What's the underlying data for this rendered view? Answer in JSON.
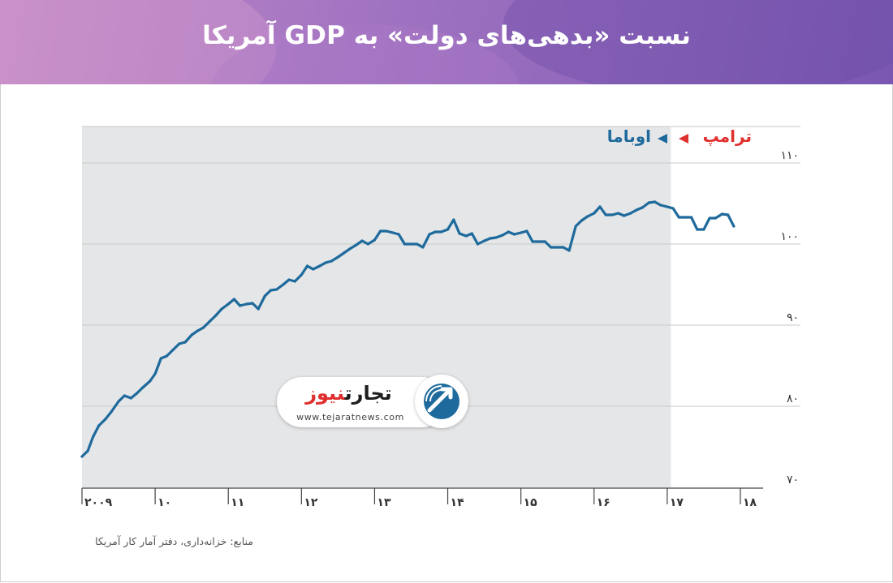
{
  "title": "نسبت «بدهی‌های دولت» به GDP آمریکا",
  "source": "منابع: خزانه‌داری، دفتر آمار کار آمریکا",
  "logo": {
    "name_part1": "تجارت",
    "name_part2": "نیوز",
    "url": "www.tejaratnews.com"
  },
  "colors": {
    "header_start": "#c289c6",
    "header_end": "#7a58b2",
    "line": "#1e6a9c",
    "shaded": "#e5e6e8",
    "trump": "#e0302e",
    "obama": "#1e6a9c",
    "logo_accent": "#1e6a9c"
  },
  "chart_data": {
    "type": "line",
    "x_ticks": [
      "۲۰۰۹",
      "۱۰",
      "۱۱",
      "۱۲",
      "۱۳",
      "۱۴",
      "۱۵",
      "۱۶",
      "۱۷",
      "۱۸"
    ],
    "x_tick_values": [
      2009,
      2010,
      2011,
      2012,
      2013,
      2014,
      2015,
      2016,
      2017,
      2018
    ],
    "xlim": [
      2009,
      2018.2
    ],
    "y_ticks": [
      "۷۰",
      "۸۰",
      "۹۰",
      "۱۰۰",
      "۱۱۰"
    ],
    "y_tick_values": [
      70,
      80,
      90,
      100,
      110
    ],
    "ylim": [
      70,
      114.5
    ],
    "grid": true,
    "shaded_region": [
      2009,
      2017.05
    ],
    "annotations": [
      {
        "label": "اوباما",
        "color": "#1e6a9c",
        "arrow": "left"
      },
      {
        "label": "ترامپ",
        "color": "#e0302e",
        "arrow": "right"
      }
    ],
    "series": [
      {
        "values": [
          [
            2009.0,
            73.8
          ],
          [
            2009.08,
            74.5
          ],
          [
            2009.15,
            76.2
          ],
          [
            2009.23,
            77.6
          ],
          [
            2009.32,
            78.4
          ],
          [
            2009.4,
            79.3
          ],
          [
            2009.5,
            80.6
          ],
          [
            2009.58,
            81.3
          ],
          [
            2009.67,
            81.0
          ],
          [
            2009.75,
            81.6
          ],
          [
            2009.83,
            82.3
          ],
          [
            2009.93,
            83.1
          ],
          [
            2010.0,
            84.0
          ],
          [
            2010.08,
            85.9
          ],
          [
            2010.16,
            86.2
          ],
          [
            2010.25,
            87.0
          ],
          [
            2010.33,
            87.7
          ],
          [
            2010.41,
            87.9
          ],
          [
            2010.5,
            88.8
          ],
          [
            2010.58,
            89.3
          ],
          [
            2010.66,
            89.7
          ],
          [
            2010.75,
            90.5
          ],
          [
            2010.83,
            91.2
          ],
          [
            2010.91,
            92.0
          ],
          [
            2011.0,
            92.6
          ],
          [
            2011.08,
            93.2
          ],
          [
            2011.16,
            92.4
          ],
          [
            2011.25,
            92.6
          ],
          [
            2011.33,
            92.7
          ],
          [
            2011.41,
            92.0
          ],
          [
            2011.5,
            93.6
          ],
          [
            2011.58,
            94.3
          ],
          [
            2011.66,
            94.4
          ],
          [
            2011.75,
            95.0
          ],
          [
            2011.83,
            95.6
          ],
          [
            2011.91,
            95.4
          ],
          [
            2012.0,
            96.2
          ],
          [
            2012.08,
            97.3
          ],
          [
            2012.16,
            96.9
          ],
          [
            2012.25,
            97.3
          ],
          [
            2012.33,
            97.7
          ],
          [
            2012.41,
            97.9
          ],
          [
            2012.5,
            98.4
          ],
          [
            2012.58,
            98.9
          ],
          [
            2012.66,
            99.4
          ],
          [
            2012.75,
            99.9
          ],
          [
            2012.83,
            100.4
          ],
          [
            2012.91,
            100.0
          ],
          [
            2013.0,
            100.5
          ],
          [
            2013.08,
            101.6
          ],
          [
            2013.16,
            101.6
          ],
          [
            2013.25,
            101.4
          ],
          [
            2013.33,
            101.2
          ],
          [
            2013.41,
            100.0
          ],
          [
            2013.5,
            100.0
          ],
          [
            2013.58,
            100.0
          ],
          [
            2013.66,
            99.6
          ],
          [
            2013.75,
            101.2
          ],
          [
            2013.83,
            101.5
          ],
          [
            2013.91,
            101.5
          ],
          [
            2014.0,
            101.8
          ],
          [
            2014.08,
            103.0
          ],
          [
            2014.16,
            101.3
          ],
          [
            2014.25,
            101.0
          ],
          [
            2014.33,
            101.3
          ],
          [
            2014.41,
            100.0
          ],
          [
            2014.5,
            100.4
          ],
          [
            2014.58,
            100.7
          ],
          [
            2014.66,
            100.8
          ],
          [
            2014.75,
            101.1
          ],
          [
            2014.83,
            101.5
          ],
          [
            2014.91,
            101.2
          ],
          [
            2015.0,
            101.4
          ],
          [
            2015.08,
            101.6
          ],
          [
            2015.16,
            100.3
          ],
          [
            2015.25,
            100.3
          ],
          [
            2015.33,
            100.3
          ],
          [
            2015.41,
            99.6
          ],
          [
            2015.5,
            99.6
          ],
          [
            2015.58,
            99.6
          ],
          [
            2015.66,
            99.2
          ],
          [
            2015.75,
            102.2
          ],
          [
            2015.83,
            102.9
          ],
          [
            2015.91,
            103.4
          ],
          [
            2016.0,
            103.8
          ],
          [
            2016.08,
            104.6
          ],
          [
            2016.16,
            103.6
          ],
          [
            2016.25,
            103.6
          ],
          [
            2016.33,
            103.8
          ],
          [
            2016.41,
            103.5
          ],
          [
            2016.5,
            103.8
          ],
          [
            2016.58,
            104.2
          ],
          [
            2016.66,
            104.5
          ],
          [
            2016.75,
            105.1
          ],
          [
            2016.83,
            105.2
          ],
          [
            2016.91,
            104.8
          ],
          [
            2017.0,
            104.6
          ],
          [
            2017.08,
            104.4
          ],
          [
            2017.16,
            103.3
          ],
          [
            2017.25,
            103.3
          ],
          [
            2017.33,
            103.3
          ],
          [
            2017.41,
            101.8
          ],
          [
            2017.5,
            101.8
          ],
          [
            2017.58,
            103.2
          ],
          [
            2017.66,
            103.2
          ],
          [
            2017.75,
            103.7
          ],
          [
            2017.83,
            103.6
          ],
          [
            2017.91,
            102.2
          ]
        ]
      }
    ]
  }
}
